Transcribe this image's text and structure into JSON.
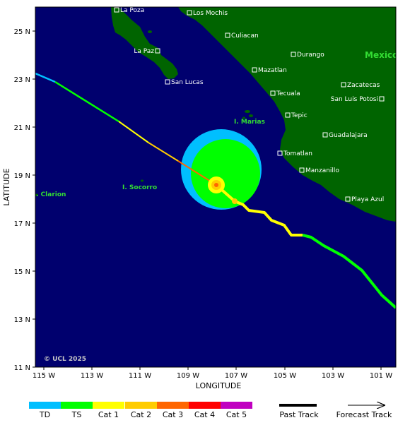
{
  "map": {
    "axes": {
      "xlabel": "LONGITUDE",
      "ylabel": "LATITUDE",
      "x_ticks": [
        "115 W",
        "113 W",
        "111 W",
        "109 W",
        "107 W",
        "105 W",
        "103 W",
        "101 W"
      ],
      "y_ticks": [
        "25 N",
        "23 N",
        "21 N",
        "19 N",
        "17 N",
        "15 N",
        "13 N",
        "11 N"
      ]
    },
    "copyright": "© UCL 2025",
    "country_label": "Mexico",
    "cities": [
      {
        "name": "La Poza"
      },
      {
        "name": "Los Mochis"
      },
      {
        "name": "Culiacan"
      },
      {
        "name": "La Paz"
      },
      {
        "name": "Durango"
      },
      {
        "name": "Mazatlan"
      },
      {
        "name": "San Lucas"
      },
      {
        "name": "Zacatecas"
      },
      {
        "name": "Tecuala"
      },
      {
        "name": "San Luis Potosi"
      },
      {
        "name": "Tepic"
      },
      {
        "name": "Guadalajara"
      },
      {
        "name": "Tomatlan"
      },
      {
        "name": "Manzanillo"
      },
      {
        "name": "Playa Azul"
      }
    ],
    "islands": [
      {
        "name": "I. Marias"
      },
      {
        "name": "I. Socorro"
      },
      {
        "name": "Clarion"
      }
    ],
    "colors": {
      "ocean": "#00006e",
      "land": "#006400",
      "TD": "#00bfff",
      "TS": "#00ff00",
      "Cat 1": "#ffff00",
      "Cat 2": "#ffcc00",
      "Cat 3": "#ff6600",
      "Cat 4": "#ff0000",
      "Cat 5": "#c000c0"
    }
  },
  "legend": {
    "categories": [
      "TD",
      "TS",
      "Cat 1",
      "Cat 2",
      "Cat 3",
      "Cat 4",
      "Cat 5"
    ],
    "past_track": "Past Track",
    "forecast_track": "Forecast Track"
  }
}
